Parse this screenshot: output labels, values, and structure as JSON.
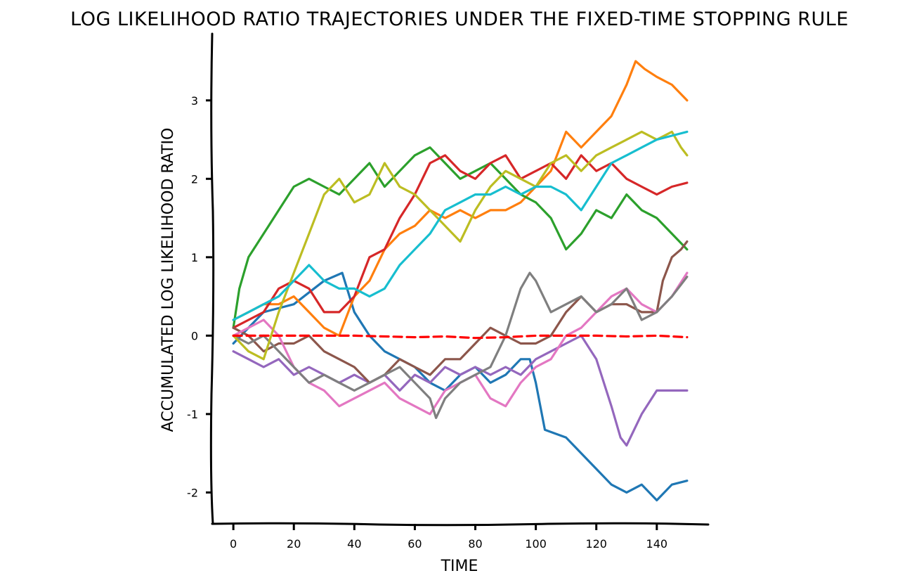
{
  "chart_data": {
    "type": "line",
    "title": "LOG LIKELIHOOD RATIO TRAJECTORIES UNDER THE FIXED-TIME STOPPING RULE",
    "xlabel": "TIME",
    "ylabel": "ACCUMULATED LOG LIKELIHOOD RATIO",
    "xlim": [
      -7,
      157
    ],
    "ylim": [
      -2.4,
      3.85
    ],
    "xticks": [
      "0",
      "20",
      "40",
      "60",
      "80",
      "100",
      "120",
      "140"
    ],
    "yticks": [
      "-2",
      "-1",
      "0",
      "1",
      "2",
      "3"
    ],
    "grid": false,
    "legend": "none",
    "style": "xkcd",
    "series": [
      {
        "color": "#1f77b4",
        "x": [
          0,
          10,
          20,
          30,
          36,
          40,
          45,
          50,
          55,
          60,
          65,
          70,
          75,
          80,
          85,
          90,
          95,
          98,
          100,
          103,
          110,
          115,
          120,
          125,
          130,
          135,
          140,
          145,
          150
        ],
        "y": [
          -0.1,
          0.3,
          0.4,
          0.7,
          0.8,
          0.3,
          0.0,
          -0.2,
          -0.3,
          -0.4,
          -0.6,
          -0.7,
          -0.5,
          -0.4,
          -0.6,
          -0.5,
          -0.3,
          -0.3,
          -0.6,
          -1.2,
          -1.3,
          -1.5,
          -1.7,
          -1.9,
          -2.0,
          -1.9,
          -2.1,
          -1.9,
          -1.85
        ]
      },
      {
        "color": "#ff7f0e",
        "x": [
          0,
          5,
          10,
          15,
          20,
          25,
          30,
          35,
          40,
          45,
          50,
          55,
          60,
          65,
          70,
          75,
          80,
          85,
          90,
          95,
          100,
          105,
          110,
          115,
          120,
          125,
          130,
          133,
          136,
          140,
          145,
          150
        ],
        "y": [
          0.2,
          0.3,
          0.4,
          0.4,
          0.5,
          0.3,
          0.1,
          0.0,
          0.5,
          0.7,
          1.1,
          1.3,
          1.4,
          1.6,
          1.5,
          1.6,
          1.5,
          1.6,
          1.6,
          1.7,
          1.9,
          2.1,
          2.6,
          2.4,
          2.6,
          2.8,
          3.2,
          3.5,
          3.4,
          3.3,
          3.2,
          3.0
        ]
      },
      {
        "color": "#2ca02c",
        "x": [
          0,
          2,
          5,
          10,
          15,
          20,
          25,
          30,
          35,
          40,
          45,
          50,
          55,
          60,
          65,
          70,
          75,
          80,
          85,
          90,
          95,
          100,
          105,
          110,
          115,
          120,
          125,
          130,
          135,
          140,
          145,
          150
        ],
        "y": [
          0.1,
          0.6,
          1.0,
          1.3,
          1.6,
          1.9,
          2.0,
          1.9,
          1.8,
          2.0,
          2.2,
          1.9,
          2.1,
          2.3,
          2.4,
          2.2,
          2.0,
          2.1,
          2.2,
          2.0,
          1.8,
          1.7,
          1.5,
          1.1,
          1.3,
          1.6,
          1.5,
          1.8,
          1.6,
          1.5,
          1.3,
          1.1
        ]
      },
      {
        "color": "#d62728",
        "x": [
          0,
          5,
          10,
          15,
          20,
          25,
          30,
          35,
          40,
          45,
          50,
          55,
          60,
          65,
          70,
          75,
          80,
          85,
          90,
          95,
          100,
          105,
          110,
          115,
          120,
          125,
          130,
          135,
          140,
          145,
          150
        ],
        "y": [
          0.1,
          0.2,
          0.3,
          0.6,
          0.7,
          0.6,
          0.3,
          0.3,
          0.5,
          1.0,
          1.1,
          1.5,
          1.8,
          2.2,
          2.3,
          2.1,
          2.0,
          2.2,
          2.3,
          2.0,
          2.1,
          2.2,
          2.0,
          2.3,
          2.1,
          2.2,
          2.0,
          1.9,
          1.8,
          1.9,
          1.95
        ]
      },
      {
        "color": "#9467bd",
        "x": [
          0,
          5,
          10,
          15,
          20,
          25,
          30,
          35,
          40,
          45,
          50,
          55,
          60,
          65,
          70,
          75,
          80,
          85,
          90,
          95,
          100,
          105,
          110,
          115,
          120,
          125,
          128,
          130,
          135,
          140,
          145,
          150
        ],
        "y": [
          -0.2,
          -0.3,
          -0.4,
          -0.3,
          -0.5,
          -0.4,
          -0.5,
          -0.6,
          -0.5,
          -0.6,
          -0.5,
          -0.7,
          -0.5,
          -0.6,
          -0.4,
          -0.5,
          -0.4,
          -0.5,
          -0.4,
          -0.5,
          -0.3,
          -0.2,
          -0.1,
          0.0,
          -0.3,
          -0.9,
          -1.3,
          -1.4,
          -1.0,
          -0.7,
          -0.7,
          -0.7
        ]
      },
      {
        "color": "#8c564b",
        "x": [
          0,
          5,
          10,
          15,
          20,
          25,
          30,
          35,
          40,
          45,
          50,
          55,
          60,
          65,
          70,
          75,
          80,
          85,
          90,
          95,
          100,
          105,
          110,
          115,
          120,
          125,
          130,
          135,
          140,
          142,
          145,
          148,
          150
        ],
        "y": [
          0.1,
          0.0,
          -0.2,
          -0.1,
          -0.1,
          0.0,
          -0.2,
          -0.3,
          -0.4,
          -0.6,
          -0.5,
          -0.3,
          -0.4,
          -0.5,
          -0.3,
          -0.3,
          -0.1,
          0.1,
          0.0,
          -0.1,
          -0.1,
          0.0,
          0.3,
          0.5,
          0.3,
          0.4,
          0.4,
          0.3,
          0.3,
          0.7,
          1.0,
          1.1,
          1.2
        ]
      },
      {
        "color": "#e377c2",
        "x": [
          0,
          5,
          10,
          15,
          20,
          25,
          30,
          35,
          40,
          45,
          50,
          55,
          60,
          65,
          70,
          75,
          80,
          85,
          90,
          95,
          100,
          105,
          110,
          115,
          120,
          125,
          130,
          135,
          140,
          145,
          150
        ],
        "y": [
          0.0,
          0.1,
          0.2,
          0.0,
          -0.4,
          -0.6,
          -0.7,
          -0.9,
          -0.8,
          -0.7,
          -0.6,
          -0.8,
          -0.9,
          -1.0,
          -0.7,
          -0.6,
          -0.5,
          -0.8,
          -0.9,
          -0.6,
          -0.4,
          -0.3,
          0.0,
          0.1,
          0.3,
          0.5,
          0.6,
          0.4,
          0.3,
          0.5,
          0.8
        ]
      },
      {
        "color": "#7f7f7f",
        "x": [
          0,
          5,
          10,
          15,
          20,
          25,
          30,
          35,
          40,
          45,
          50,
          55,
          60,
          65,
          67,
          70,
          75,
          80,
          85,
          90,
          95,
          98,
          100,
          105,
          110,
          115,
          120,
          125,
          130,
          135,
          140,
          145,
          150
        ],
        "y": [
          0.0,
          -0.1,
          0.0,
          -0.2,
          -0.4,
          -0.6,
          -0.5,
          -0.6,
          -0.7,
          -0.6,
          -0.5,
          -0.4,
          -0.6,
          -0.8,
          -1.05,
          -0.8,
          -0.6,
          -0.5,
          -0.4,
          0.0,
          0.6,
          0.8,
          0.7,
          0.3,
          0.4,
          0.5,
          0.3,
          0.4,
          0.6,
          0.2,
          0.3,
          0.5,
          0.75
        ]
      },
      {
        "color": "#bcbd22",
        "x": [
          0,
          5,
          10,
          15,
          20,
          25,
          30,
          35,
          40,
          45,
          50,
          55,
          60,
          65,
          70,
          75,
          80,
          85,
          90,
          95,
          100,
          105,
          110,
          115,
          120,
          125,
          130,
          135,
          140,
          145,
          148,
          150
        ],
        "y": [
          0.0,
          -0.2,
          -0.3,
          0.3,
          0.8,
          1.3,
          1.8,
          2.0,
          1.7,
          1.8,
          2.2,
          1.9,
          1.8,
          1.6,
          1.4,
          1.2,
          1.6,
          1.9,
          2.1,
          2.0,
          1.9,
          2.2,
          2.3,
          2.1,
          2.3,
          2.4,
          2.5,
          2.6,
          2.5,
          2.6,
          2.4,
          2.3
        ]
      },
      {
        "color": "#17becf",
        "x": [
          0,
          5,
          10,
          15,
          20,
          25,
          30,
          35,
          40,
          45,
          50,
          55,
          60,
          65,
          70,
          75,
          80,
          85,
          90,
          95,
          100,
          105,
          110,
          115,
          120,
          125,
          130,
          135,
          140,
          145,
          150
        ],
        "y": [
          0.2,
          0.3,
          0.4,
          0.5,
          0.7,
          0.9,
          0.7,
          0.6,
          0.6,
          0.5,
          0.6,
          0.9,
          1.1,
          1.3,
          1.6,
          1.7,
          1.8,
          1.8,
          1.9,
          1.8,
          1.9,
          1.9,
          1.8,
          1.6,
          1.9,
          2.2,
          2.3,
          2.4,
          2.5,
          2.55,
          2.6
        ]
      },
      {
        "color": "#ff0000",
        "dashed": true,
        "x": [
          0,
          10,
          20,
          30,
          40,
          50,
          60,
          70,
          80,
          90,
          100,
          110,
          120,
          130,
          140,
          150
        ],
        "y": [
          0.0,
          0.0,
          0.0,
          0.0,
          0.0,
          -0.01,
          -0.02,
          -0.01,
          -0.03,
          -0.02,
          0.0,
          0.0,
          0.0,
          -0.01,
          0.0,
          -0.02
        ]
      }
    ]
  }
}
